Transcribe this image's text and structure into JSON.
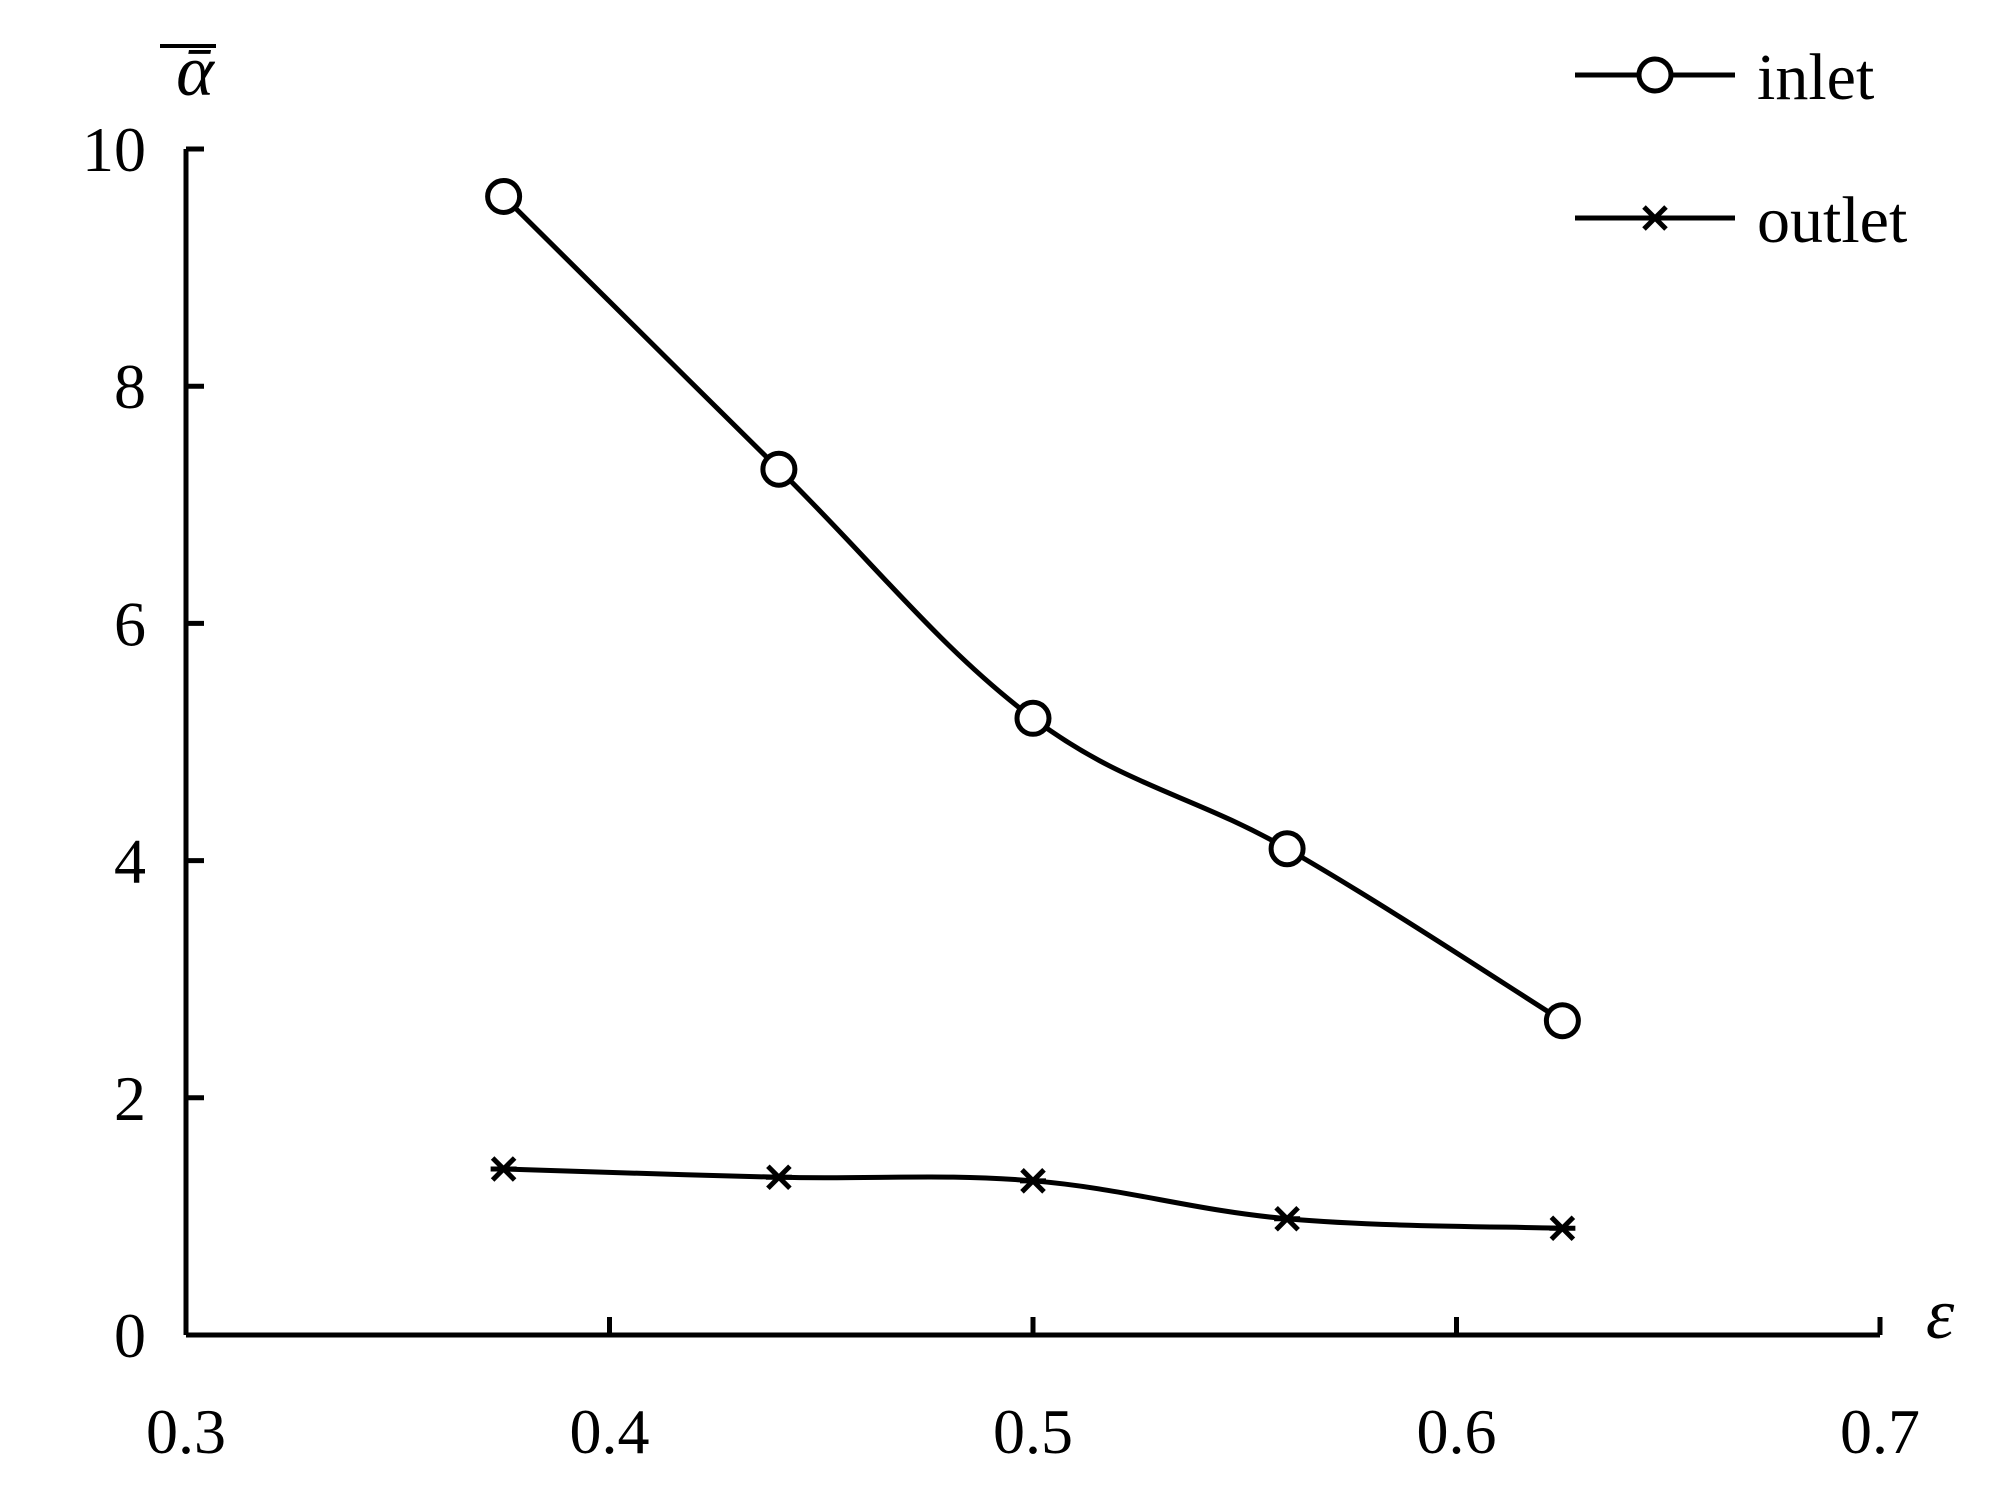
{
  "chart_data": {
    "type": "line",
    "title": "",
    "xlabel": "ε",
    "ylabel": "ᾱ",
    "xlim": [
      0.3,
      0.7
    ],
    "ylim": [
      0,
      10
    ],
    "xticks": [
      0.3,
      0.4,
      0.5,
      0.6,
      0.7
    ],
    "yticks": [
      0,
      2,
      4,
      6,
      8,
      10
    ],
    "x_tick_labels": [
      "0.3",
      "0.4",
      "0.5",
      "0.6",
      "0.7"
    ],
    "y_tick_labels": [
      "0",
      "2",
      "4",
      "6",
      "8",
      "10"
    ],
    "grid": false,
    "legend_position": "top-right",
    "series": [
      {
        "name": "inlet",
        "marker": "circle",
        "x": [
          0.375,
          0.44,
          0.5,
          0.56,
          0.625
        ],
        "y": [
          9.6,
          7.3,
          5.2,
          4.1,
          2.65
        ]
      },
      {
        "name": "outlet",
        "marker": "asterisk",
        "x": [
          0.375,
          0.44,
          0.5,
          0.56,
          0.625
        ],
        "y": [
          1.4,
          1.33,
          1.3,
          0.98,
          0.9
        ]
      }
    ],
    "colors": {
      "line": "#000000",
      "background": "#ffffff"
    }
  }
}
